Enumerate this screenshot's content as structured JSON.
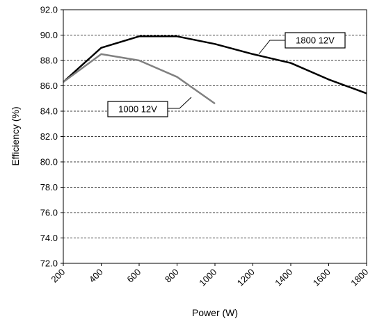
{
  "chart_data": {
    "type": "line",
    "xlabel": "Power (W)",
    "ylabel": "Efficiency (%)",
    "xlim": [
      200,
      1800
    ],
    "ylim": [
      72,
      92
    ],
    "x_ticks": [
      "200",
      "400",
      "600",
      "800",
      "1000",
      "1200",
      "1400",
      "1600",
      "1800"
    ],
    "y_ticks": [
      "72.0",
      "74.0",
      "76.0",
      "78.0",
      "80.0",
      "82.0",
      "84.0",
      "86.0",
      "88.0",
      "90.0",
      "92.0"
    ],
    "grid": "horizontal dashed",
    "series": [
      {
        "name": "1800 12V",
        "color": "#000000",
        "x": [
          200,
          400,
          600,
          800,
          1000,
          1200,
          1400,
          1600,
          1800
        ],
        "y": [
          86.3,
          89.0,
          89.9,
          89.9,
          89.3,
          88.5,
          87.8,
          86.5,
          85.4
        ]
      },
      {
        "name": "1000 12V",
        "color": "#808080",
        "x": [
          200,
          400,
          600,
          800,
          1000
        ],
        "y": [
          86.3,
          88.5,
          88.0,
          86.7,
          84.6
        ]
      }
    ]
  }
}
